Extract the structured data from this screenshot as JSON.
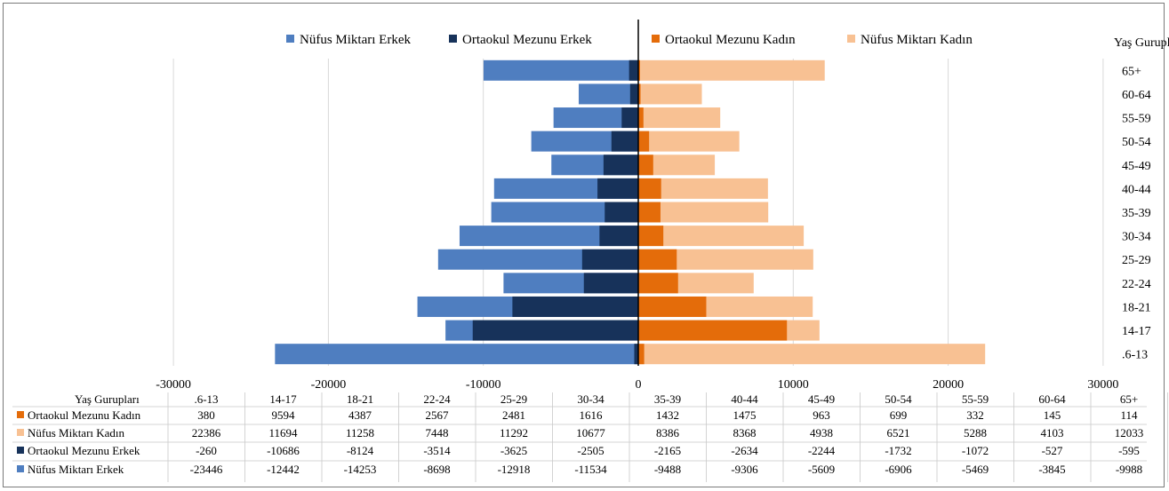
{
  "chart_data": {
    "type": "bar",
    "orientation": "horizontal",
    "stacking": "overlap",
    "title": "",
    "ylabel": "Yaş Gurupları",
    "table_header": "Yaş Gurupları",
    "categories": [
      ".6-13",
      "14-17",
      "18-21",
      "22-24",
      "25-29",
      "30-34",
      "35-39",
      "40-44",
      "45-49",
      "50-54",
      "55-59",
      "60-64",
      "65+"
    ],
    "xlim": [
      -30000,
      30000
    ],
    "xticks": [
      -30000,
      -20000,
      -10000,
      0,
      10000,
      20000,
      30000
    ],
    "grid": true,
    "legend_position": "top",
    "legend": [
      "Nüfus Miktarı Erkek",
      "Ortaokul Mezunu Erkek",
      "Ortaokul Mezunu Kadın",
      "Nüfus Miktarı Kadın"
    ],
    "series": [
      {
        "name": "Nüfus Miktarı Erkek",
        "color": "#4f7ec0",
        "values": [
          -23446,
          -12442,
          -14253,
          -8698,
          -12918,
          -11534,
          -9488,
          -9306,
          -5609,
          -6906,
          -5469,
          -3845,
          -9988
        ]
      },
      {
        "name": "Ortaokul Mezunu Erkek",
        "color": "#17325a",
        "values": [
          -260,
          -10686,
          -8124,
          -3514,
          -3625,
          -2505,
          -2165,
          -2634,
          -2244,
          -1732,
          -1072,
          -527,
          -595
        ]
      },
      {
        "name": "Ortaokul Mezunu Kadın",
        "color": "#e46c0a",
        "values": [
          380,
          9594,
          4387,
          2567,
          2481,
          1616,
          1432,
          1475,
          963,
          699,
          332,
          145,
          114
        ]
      },
      {
        "name": "Nüfus Miktarı Kadın",
        "color": "#f8c193",
        "values": [
          22386,
          11694,
          11258,
          7448,
          11292,
          10677,
          8386,
          8368,
          4938,
          6521,
          5288,
          4103,
          12033
        ]
      }
    ],
    "table_row_order": [
      "Ortaokul Mezunu Kadın",
      "Nüfus Miktarı Kadın",
      "Ortaokul Mezunu Erkek",
      "Nüfus Miktarı Erkek"
    ]
  }
}
